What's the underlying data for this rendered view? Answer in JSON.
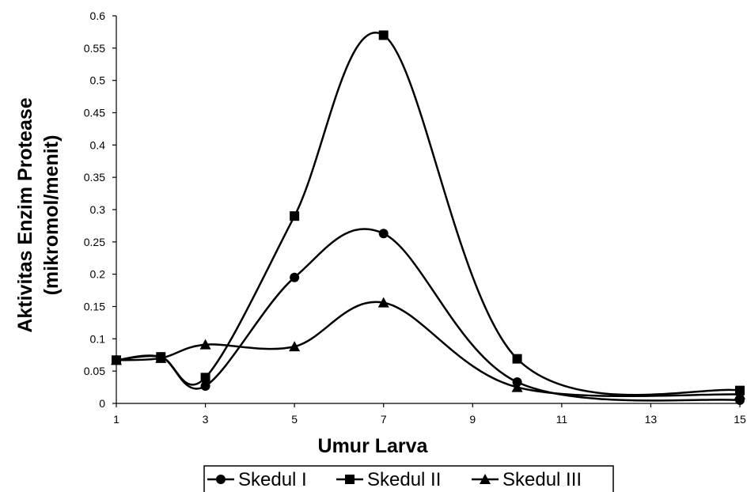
{
  "chart_data": {
    "type": "line",
    "title": "",
    "xlabel": "Umur Larva",
    "ylabel_lines": [
      "Aktivitas Enzim Protease",
      "(mikromol/menit)"
    ],
    "xlim": [
      1,
      15
    ],
    "ylim": [
      0,
      0.6
    ],
    "x_ticks": [
      "1",
      "3",
      "5",
      "7",
      "9",
      "11",
      "13",
      "15"
    ],
    "y_ticks": [
      "0",
      "0.05",
      "0.1",
      "0.15",
      "0.2",
      "0.25",
      "0.3",
      "0.35",
      "0.4",
      "0.45",
      "0.5",
      "0.55",
      "0.6"
    ],
    "x_tick_values": [
      1,
      3,
      5,
      7,
      9,
      11,
      13,
      15
    ],
    "y_tick_values": [
      0,
      0.05,
      0.1,
      0.15,
      0.2,
      0.25,
      0.3,
      0.35,
      0.4,
      0.45,
      0.5,
      0.55,
      0.6
    ],
    "smooth": true,
    "grid": false,
    "legend_position": "bottom",
    "series": [
      {
        "name": "Skedul I",
        "marker": "circle",
        "color": "#000000",
        "points": [
          [
            1,
            0.067
          ],
          [
            2,
            0.072
          ],
          [
            3,
            0.027
          ],
          [
            5,
            0.195
          ],
          [
            7,
            0.263
          ],
          [
            10,
            0.033
          ],
          [
            15,
            0.005
          ]
        ]
      },
      {
        "name": "Skedul II",
        "marker": "square",
        "color": "#000000",
        "points": [
          [
            1,
            0.067
          ],
          [
            2,
            0.072
          ],
          [
            3,
            0.04
          ],
          [
            5,
            0.29
          ],
          [
            7,
            0.57
          ],
          [
            10,
            0.069
          ],
          [
            15,
            0.02
          ]
        ]
      },
      {
        "name": "Skedul III",
        "marker": "triangle",
        "color": "#000000",
        "points": [
          [
            1,
            0.067
          ],
          [
            2,
            0.07
          ],
          [
            3,
            0.091
          ],
          [
            5,
            0.088
          ],
          [
            7,
            0.156
          ],
          [
            10,
            0.025
          ],
          [
            15,
            0.014
          ]
        ]
      }
    ]
  }
}
